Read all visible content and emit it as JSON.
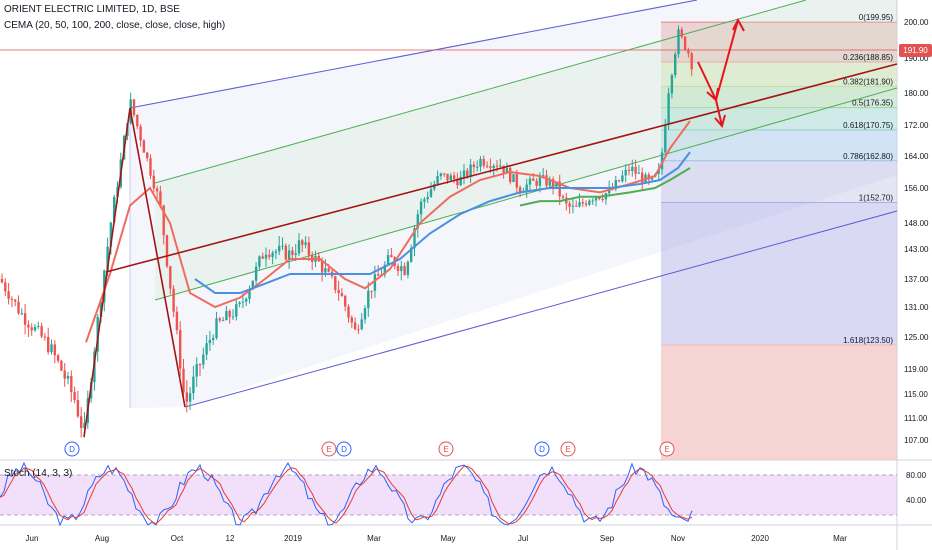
{
  "header": {
    "symbol_line": "ORIENT ELECTRIC LIMITED, 1D, BSE",
    "indicator_line": "CEMA (20, 50, 100, 200, close, close, close, high)",
    "stoch_label": "Stoch (14, 3, 3)"
  },
  "last_price_label": "191.90",
  "colors": {
    "up": "#26a69a",
    "down": "#ef5350",
    "channel": "#5b5bd6",
    "inner_channel": "#4caf50",
    "regression": "#a31515",
    "ema20": "#ef6b5e",
    "ema50": "#4a90e2",
    "ema100": "#4caf50",
    "arrows": "#e8141c",
    "stoch_k": "#2962ff",
    "stoch_d": "#e53935",
    "stoch_band": "#d9a6f2"
  },
  "chart_data": {
    "type": "candlestick",
    "price_axis": {
      "ticks": [
        "200.00",
        "190.00",
        "180.00",
        "172.00",
        "164.00",
        "156.00",
        "148.00",
        "143.00",
        "137.00",
        "131.00",
        "125.00",
        "119.00",
        "115.00",
        "111.00",
        "107.00"
      ],
      "ylim": [
        104,
        204
      ]
    },
    "x_ticks": [
      "Jun",
      "Aug",
      "Oct",
      "12",
      "2019",
      "Mar",
      "May",
      "Jul",
      "Sep",
      "Nov",
      "2020",
      "Mar"
    ],
    "fibonacci": [
      {
        "label": "0(199.95)",
        "value": 199.95
      },
      {
        "label": "0.236(188.85)",
        "value": 188.85
      },
      {
        "label": "0.382(181.90)",
        "value": 181.9
      },
      {
        "label": "0.5(176.35)",
        "value": 176.35
      },
      {
        "label": "0.618(170.75)",
        "value": 170.75
      },
      {
        "label": "0.786(162.80)",
        "value": 162.8
      },
      {
        "label": "1(152.70)",
        "value": 152.7
      },
      {
        "label": "1.618(123.50)",
        "value": 123.5
      }
    ],
    "event_markers": [
      {
        "label": "D",
        "kind": "dividend"
      },
      {
        "label": "E",
        "kind": "earnings"
      },
      {
        "label": "D",
        "kind": "dividend"
      },
      {
        "label": "E",
        "kind": "earnings"
      },
      {
        "label": "D",
        "kind": "dividend"
      },
      {
        "label": "E",
        "kind": "earnings"
      },
      {
        "label": "E",
        "kind": "earnings"
      }
    ],
    "stochastic": {
      "levels": [
        "80.00",
        "40.00"
      ],
      "upper_band": 80,
      "lower_band": 20
    }
  }
}
